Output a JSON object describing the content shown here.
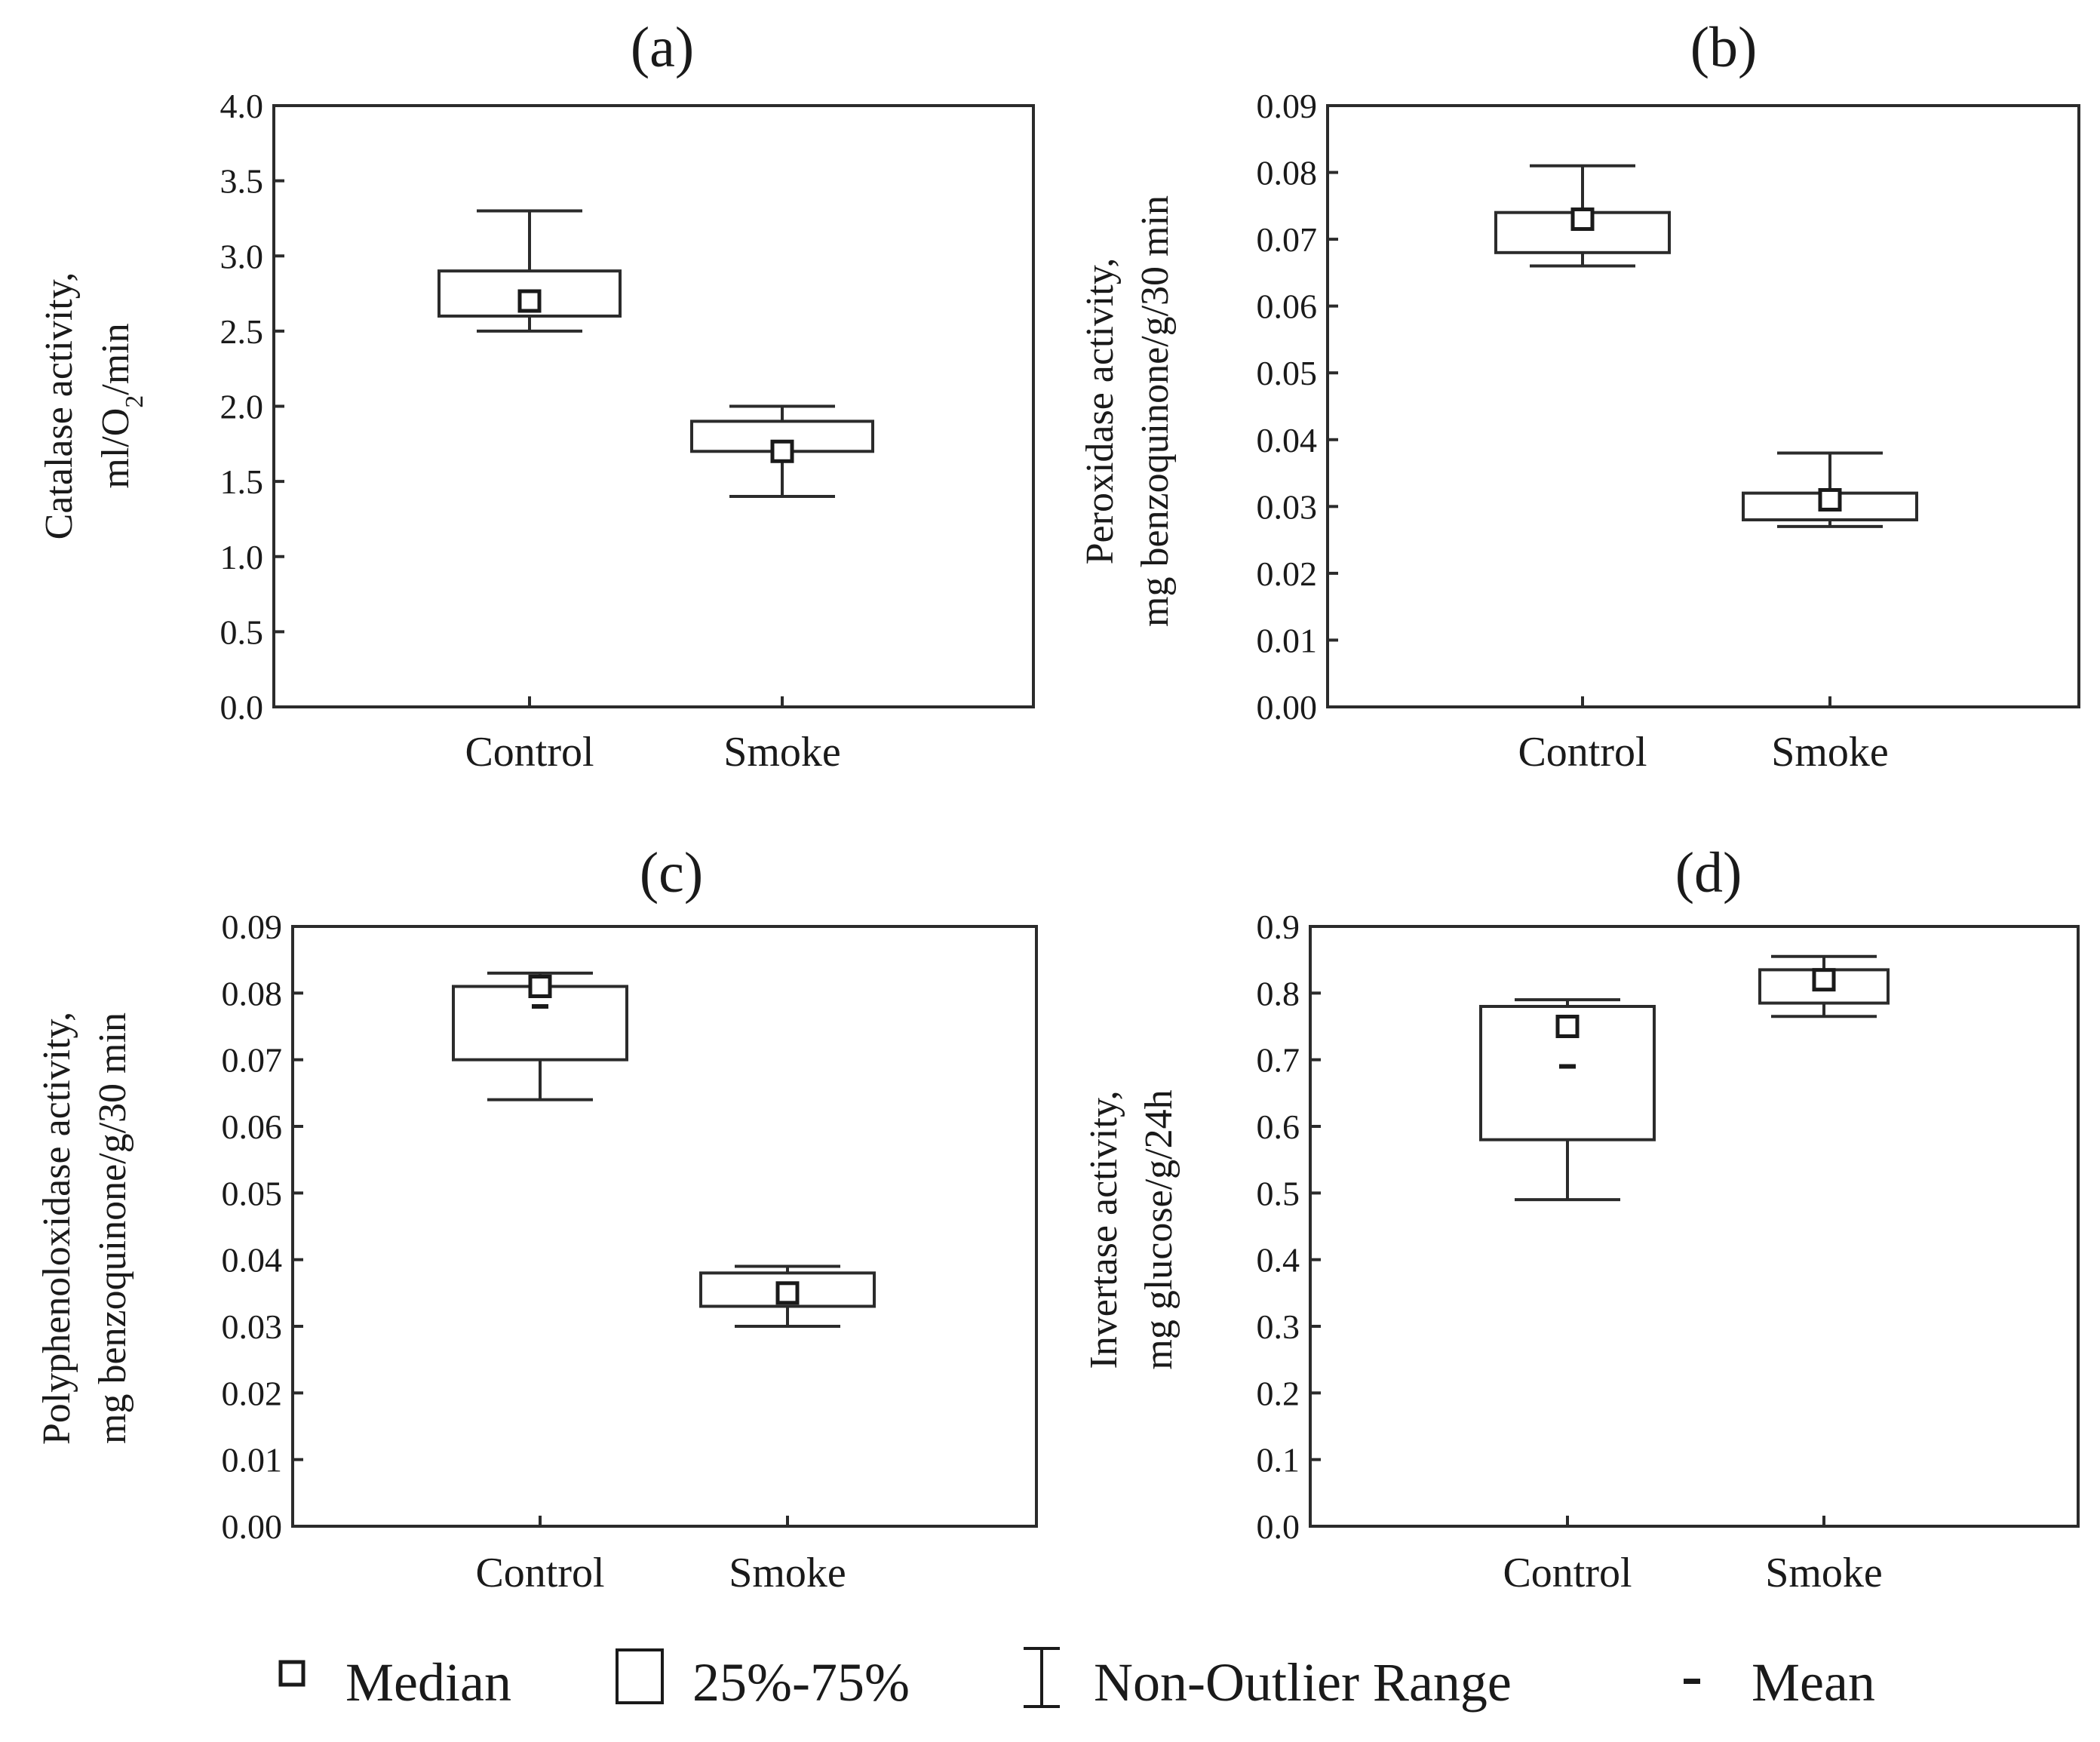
{
  "colors": {
    "ink": "#2b2b2b",
    "background": "#ffffff"
  },
  "legend": {
    "median": "Median",
    "box": "25%-75%",
    "whisker": "Non-Outlier Range",
    "mean": "Mean"
  },
  "chart_data": [
    {
      "type": "box",
      "title": "(a)",
      "ylabel_line1": "Catalase activity,",
      "ylabel_line2": "ml/O",
      "ylabel_sub": "2",
      "ylabel_line2_end": "/min",
      "ylim": [
        0,
        4.0
      ],
      "yticks": [
        "0.0",
        "0.5",
        "1.0",
        "1.5",
        "2.0",
        "2.5",
        "3.0",
        "3.5",
        "4.0"
      ],
      "categories": [
        "Control",
        "Smoke"
      ],
      "boxes": [
        {
          "category": "Control",
          "whisker_low": 2.5,
          "q1": 2.6,
          "median": 2.7,
          "mean": 2.72,
          "q3": 2.9,
          "whisker_high": 3.3
        },
        {
          "category": "Smoke",
          "whisker_low": 1.4,
          "q1": 1.7,
          "median": 1.7,
          "mean": 1.72,
          "q3": 1.9,
          "whisker_high": 2.0
        }
      ]
    },
    {
      "type": "box",
      "title": "(b)",
      "ylabel_line1": "Peroxidase activity,",
      "ylabel_line2": "mg benzoquinone/g/30 min",
      "ylim": [
        0,
        0.09
      ],
      "yticks": [
        "0.00",
        "0.01",
        "0.02",
        "0.03",
        "0.04",
        "0.05",
        "0.06",
        "0.07",
        "0.08",
        "0.09"
      ],
      "categories": [
        "Control",
        "Smoke"
      ],
      "boxes": [
        {
          "category": "Control",
          "whisker_low": 0.066,
          "q1": 0.068,
          "median": 0.073,
          "mean": 0.072,
          "q3": 0.074,
          "whisker_high": 0.081
        },
        {
          "category": "Smoke",
          "whisker_low": 0.027,
          "q1": 0.028,
          "median": 0.031,
          "mean": 0.03,
          "q3": 0.032,
          "whisker_high": 0.038
        }
      ]
    },
    {
      "type": "box",
      "title": "(c)",
      "ylabel_line1": "Polyphenoloxidase activity,",
      "ylabel_line2": "mg benzoquinone/g/30 min",
      "ylim": [
        0,
        0.09
      ],
      "yticks": [
        "0.00",
        "0.01",
        "0.02",
        "0.03",
        "0.04",
        "0.05",
        "0.06",
        "0.07",
        "0.08",
        "0.09"
      ],
      "categories": [
        "Control",
        "Smoke"
      ],
      "boxes": [
        {
          "category": "Control",
          "whisker_low": 0.064,
          "q1": 0.07,
          "median": 0.081,
          "mean": 0.078,
          "q3": 0.081,
          "whisker_high": 0.083
        },
        {
          "category": "Smoke",
          "whisker_low": 0.03,
          "q1": 0.033,
          "median": 0.035,
          "mean": 0.035,
          "q3": 0.038,
          "whisker_high": 0.039
        }
      ]
    },
    {
      "type": "box",
      "title": "(d)",
      "ylabel_line1": "Invertase activity,",
      "ylabel_line2": "mg glucose/g/24h",
      "ylim": [
        0,
        0.9
      ],
      "yticks": [
        "0.0",
        "0.1",
        "0.2",
        "0.3",
        "0.4",
        "0.5",
        "0.6",
        "0.7",
        "0.8",
        "0.9"
      ],
      "categories": [
        "Control",
        "Smoke"
      ],
      "boxes": [
        {
          "category": "Control",
          "whisker_low": 0.49,
          "q1": 0.58,
          "median": 0.75,
          "mean": 0.69,
          "q3": 0.78,
          "whisker_high": 0.79
        },
        {
          "category": "Smoke",
          "whisker_low": 0.765,
          "q1": 0.785,
          "median": 0.82,
          "mean": 0.815,
          "q3": 0.835,
          "whisker_high": 0.855
        }
      ]
    }
  ]
}
